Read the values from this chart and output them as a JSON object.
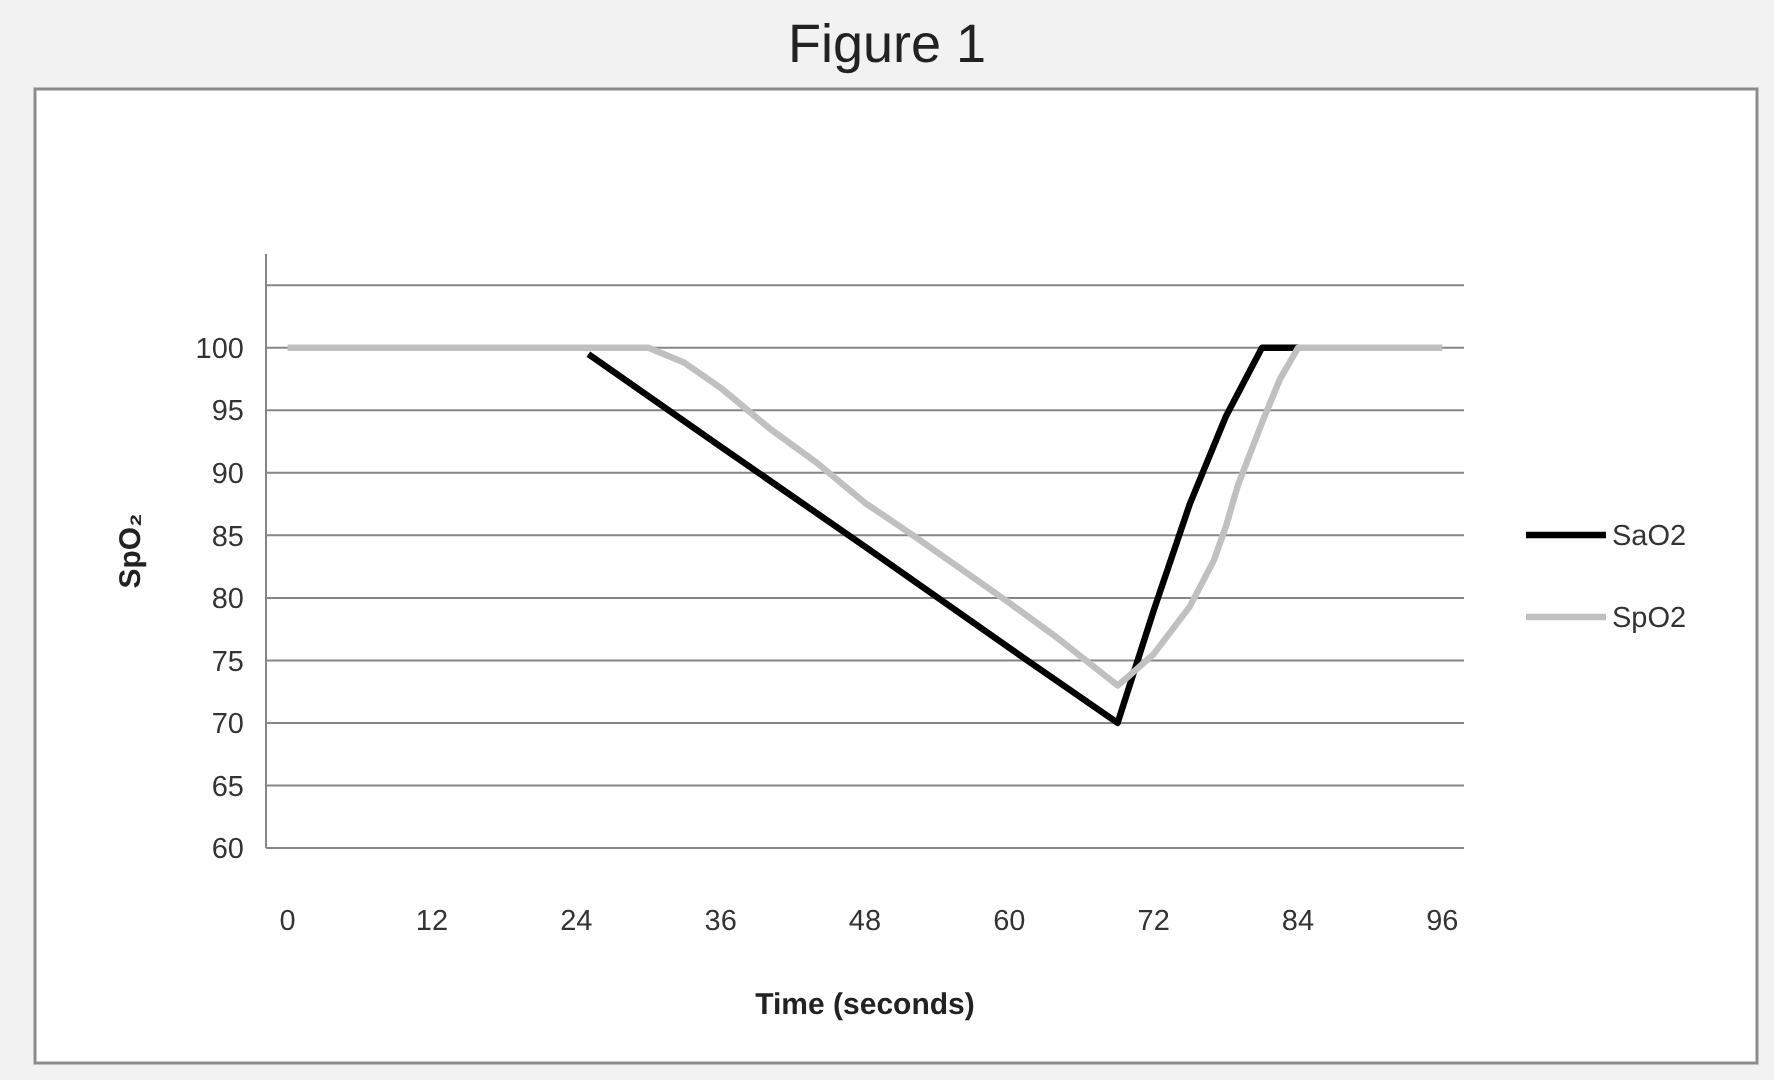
{
  "chart_data": {
    "type": "line",
    "title": "Figure 1",
    "xlabel": "Time (seconds)",
    "ylabel": "SpO₂",
    "xlim": [
      -1.8,
      97.8
    ],
    "xticks": [
      0,
      12,
      24,
      36,
      48,
      60,
      72,
      84,
      96
    ],
    "ylim": [
      60,
      107.5
    ],
    "yticks": [
      60,
      65,
      70,
      75,
      80,
      85,
      90,
      95,
      100,
      {
        "value": 105,
        "label": null
      }
    ],
    "grid": "y",
    "legend": "right",
    "series": [
      {
        "name": "SaO2",
        "color": "#000000",
        "x": [
          25,
          36,
          48,
          60,
          69,
          72,
          75,
          78,
          81,
          84
        ],
        "values": [
          99.5,
          92.1,
          84.1,
          76,
          70,
          79,
          87.5,
          94.5,
          100,
          100
        ]
      },
      {
        "name": "SpO2",
        "color": "#c0c0c0",
        "x": [
          0,
          30,
          33,
          36,
          38,
          40,
          44,
          48,
          52,
          56,
          60,
          64,
          69,
          70,
          72,
          75,
          77,
          78,
          79,
          81,
          82.5,
          84,
          96
        ],
        "values": [
          100,
          100,
          98.8,
          96.8,
          95.2,
          93.6,
          90.8,
          87.6,
          85,
          82.3,
          79.6,
          76.8,
          73,
          73.8,
          75.5,
          79.3,
          83,
          85.7,
          89,
          94,
          97.5,
          100,
          100
        ]
      }
    ]
  }
}
